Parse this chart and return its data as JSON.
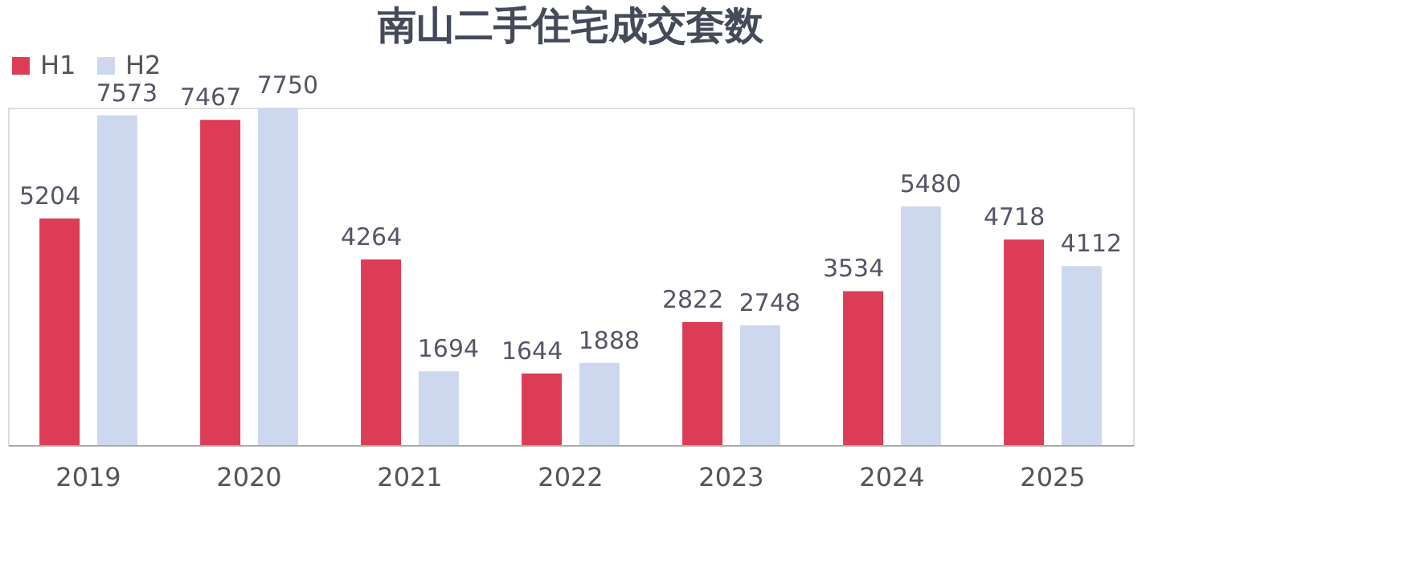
{
  "chart_data": {
    "type": "bar",
    "title": "南山二手住宅成交套数",
    "categories": [
      "2019",
      "2020",
      "2021",
      "2022",
      "2023",
      "2024",
      "2025"
    ],
    "series": [
      {
        "name": "H1",
        "color": "#dc3c55",
        "values": [
          5204,
          7467,
          4264,
          1644,
          2822,
          3534,
          4718
        ]
      },
      {
        "name": "H2",
        "color": "#cdd8ee",
        "values": [
          7573,
          7750,
          1694,
          1888,
          2748,
          5480,
          4112
        ]
      }
    ],
    "data_labels": true,
    "legend": "top",
    "grid": false
  }
}
